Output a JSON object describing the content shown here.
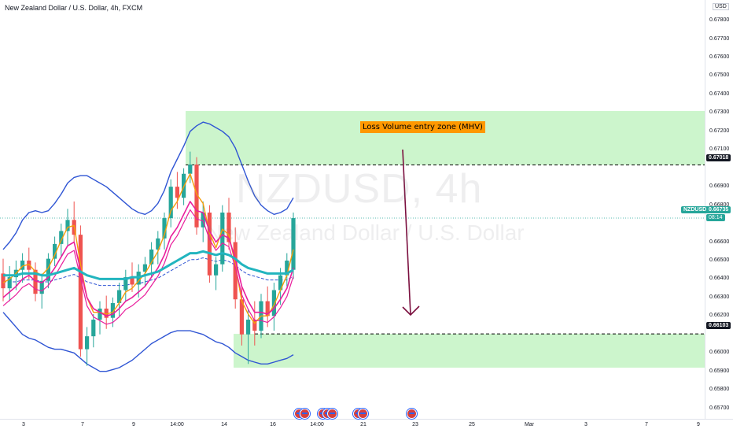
{
  "chart_data": {
    "type": "candlestick",
    "title": "New Zealand Dollar / U.S. Dollar, 4h, FXCM",
    "watermark_symbol": "NZDUSD, 4h",
    "watermark_name": "New Zealand Dollar / U.S. Dollar",
    "currency_label": "USD",
    "y_ticks": [
      "0.67800",
      "0.67700",
      "0.67600",
      "0.67500",
      "0.67400",
      "0.67300",
      "0.67200",
      "0.67100",
      "0.66900",
      "0.66800",
      "0.66600",
      "0.66500",
      "0.66400",
      "0.66300",
      "0.66200",
      "0.66000",
      "0.65900",
      "0.65800",
      "0.65700"
    ],
    "x_ticks": [
      "3",
      "7",
      "9",
      "14:00",
      "14",
      "16",
      "14:00",
      "21",
      "23",
      "25",
      "Mar",
      "3",
      "7",
      "9"
    ],
    "ylim": [
      0.6566,
      0.6786
    ],
    "zone_top": 0.6731,
    "upper_level": 0.67018,
    "lower_level": 0.66103,
    "zone_bottom": 0.6592,
    "price_tags": {
      "upper": "0.67018",
      "lower": "0.66103",
      "symbol": "NZDUSD",
      "last": "0.66735",
      "countdown": "08:14"
    },
    "annotation": "Loss Volume entry zone (MHV)",
    "colors": {
      "up": "#26a69a",
      "down": "#ef5350",
      "zone": "#ccf5cc",
      "ema_cyan": "#22b5bf",
      "ema_orange": "#f59e0b",
      "ema_magenta": "#e91e9c",
      "band_blue": "#2f55d4",
      "arrow": "#7b0f3f"
    },
    "candles": [
      {
        "o": 0.6643,
        "h": 0.6651,
        "l": 0.6628,
        "c": 0.6635
      },
      {
        "o": 0.6635,
        "h": 0.6647,
        "l": 0.6628,
        "c": 0.6641
      },
      {
        "o": 0.6641,
        "h": 0.665,
        "l": 0.6634,
        "c": 0.6645
      },
      {
        "o": 0.6645,
        "h": 0.6654,
        "l": 0.6638,
        "c": 0.665
      },
      {
        "o": 0.665,
        "h": 0.6657,
        "l": 0.664,
        "c": 0.6645
      },
      {
        "o": 0.6645,
        "h": 0.6649,
        "l": 0.6628,
        "c": 0.6632
      },
      {
        "o": 0.6632,
        "h": 0.6643,
        "l": 0.6624,
        "c": 0.6639
      },
      {
        "o": 0.6639,
        "h": 0.6654,
        "l": 0.6635,
        "c": 0.6651
      },
      {
        "o": 0.6651,
        "h": 0.6663,
        "l": 0.6647,
        "c": 0.6659
      },
      {
        "o": 0.6659,
        "h": 0.667,
        "l": 0.6652,
        "c": 0.6666
      },
      {
        "o": 0.6666,
        "h": 0.6678,
        "l": 0.6658,
        "c": 0.6672
      },
      {
        "o": 0.6672,
        "h": 0.6682,
        "l": 0.666,
        "c": 0.6664
      },
      {
        "o": 0.6664,
        "h": 0.6669,
        "l": 0.6598,
        "c": 0.6602
      },
      {
        "o": 0.6602,
        "h": 0.6614,
        "l": 0.6593,
        "c": 0.6609
      },
      {
        "o": 0.6609,
        "h": 0.6621,
        "l": 0.6603,
        "c": 0.6618
      },
      {
        "o": 0.6618,
        "h": 0.6628,
        "l": 0.661,
        "c": 0.6624
      },
      {
        "o": 0.6624,
        "h": 0.6631,
        "l": 0.6613,
        "c": 0.6619
      },
      {
        "o": 0.6619,
        "h": 0.663,
        "l": 0.6614,
        "c": 0.6627
      },
      {
        "o": 0.6627,
        "h": 0.6638,
        "l": 0.662,
        "c": 0.6634
      },
      {
        "o": 0.6634,
        "h": 0.6645,
        "l": 0.6628,
        "c": 0.6641
      },
      {
        "o": 0.6641,
        "h": 0.6649,
        "l": 0.6633,
        "c": 0.6637
      },
      {
        "o": 0.6637,
        "h": 0.6648,
        "l": 0.663,
        "c": 0.6644
      },
      {
        "o": 0.6644,
        "h": 0.6652,
        "l": 0.6636,
        "c": 0.6648
      },
      {
        "o": 0.6648,
        "h": 0.666,
        "l": 0.6641,
        "c": 0.6656
      },
      {
        "o": 0.6656,
        "h": 0.6666,
        "l": 0.6648,
        "c": 0.6662
      },
      {
        "o": 0.6662,
        "h": 0.6676,
        "l": 0.6656,
        "c": 0.6673
      },
      {
        "o": 0.6673,
        "h": 0.6694,
        "l": 0.6668,
        "c": 0.669
      },
      {
        "o": 0.669,
        "h": 0.6698,
        "l": 0.6678,
        "c": 0.6684
      },
      {
        "o": 0.6684,
        "h": 0.67,
        "l": 0.668,
        "c": 0.6697
      },
      {
        "o": 0.6697,
        "h": 0.6709,
        "l": 0.6692,
        "c": 0.6702
      },
      {
        "o": 0.6702,
        "h": 0.6706,
        "l": 0.6664,
        "c": 0.6668
      },
      {
        "o": 0.6668,
        "h": 0.6682,
        "l": 0.666,
        "c": 0.6676
      },
      {
        "o": 0.6676,
        "h": 0.668,
        "l": 0.6638,
        "c": 0.6642
      },
      {
        "o": 0.6642,
        "h": 0.6652,
        "l": 0.6634,
        "c": 0.6648
      },
      {
        "o": 0.6648,
        "h": 0.668,
        "l": 0.6644,
        "c": 0.6676
      },
      {
        "o": 0.6676,
        "h": 0.6684,
        "l": 0.6656,
        "c": 0.666
      },
      {
        "o": 0.666,
        "h": 0.6668,
        "l": 0.6624,
        "c": 0.6629
      },
      {
        "o": 0.6629,
        "h": 0.6636,
        "l": 0.6604,
        "c": 0.661
      },
      {
        "o": 0.661,
        "h": 0.6624,
        "l": 0.6594,
        "c": 0.6618
      },
      {
        "o": 0.6618,
        "h": 0.6628,
        "l": 0.6604,
        "c": 0.6612
      },
      {
        "o": 0.6612,
        "h": 0.6632,
        "l": 0.6608,
        "c": 0.6628
      },
      {
        "o": 0.6628,
        "h": 0.6636,
        "l": 0.6614,
        "c": 0.662
      },
      {
        "o": 0.662,
        "h": 0.6638,
        "l": 0.6612,
        "c": 0.6634
      },
      {
        "o": 0.6634,
        "h": 0.6646,
        "l": 0.6626,
        "c": 0.6642
      },
      {
        "o": 0.6642,
        "h": 0.6654,
        "l": 0.6636,
        "c": 0.665
      },
      {
        "o": 0.6645,
        "h": 0.6676,
        "l": 0.664,
        "c": 0.6673
      }
    ],
    "ema_cyan": [
      0.6642,
      0.6642,
      0.6642,
      0.6643,
      0.6643,
      0.6643,
      0.6642,
      0.6642,
      0.6643,
      0.6644,
      0.6645,
      0.6646,
      0.6644,
      0.6642,
      0.6641,
      0.664,
      0.664,
      0.664,
      0.664,
      0.664,
      0.6641,
      0.6641,
      0.6642,
      0.6643,
      0.6644,
      0.6646,
      0.6648,
      0.665,
      0.6652,
      0.6654,
      0.6654,
      0.6655,
      0.6654,
      0.6653,
      0.6654,
      0.6653,
      0.6651,
      0.6648,
      0.6646,
      0.6645,
      0.6644,
      0.6643,
      0.6643,
      0.6643,
      0.6643,
      0.6645
    ],
    "ema_orange": [
      0.6638,
      0.664,
      0.6643,
      0.6647,
      0.6648,
      0.6644,
      0.6642,
      0.6646,
      0.6653,
      0.6661,
      0.6668,
      0.6669,
      0.6648,
      0.663,
      0.6622,
      0.6622,
      0.6621,
      0.6622,
      0.6627,
      0.6633,
      0.6635,
      0.6639,
      0.6643,
      0.6649,
      0.6655,
      0.6664,
      0.6677,
      0.6682,
      0.669,
      0.6697,
      0.6686,
      0.6681,
      0.6665,
      0.6657,
      0.6667,
      0.6664,
      0.6648,
      0.6628,
      0.6621,
      0.6616,
      0.662,
      0.662,
      0.6626,
      0.6634,
      0.6642,
      0.6656
    ],
    "ema_magenta": [
      0.663,
      0.6633,
      0.6636,
      0.664,
      0.6642,
      0.6639,
      0.6638,
      0.6641,
      0.6646,
      0.6652,
      0.6658,
      0.666,
      0.6645,
      0.663,
      0.6624,
      0.6622,
      0.662,
      0.6621,
      0.6624,
      0.6628,
      0.663,
      0.6633,
      0.6636,
      0.6641,
      0.6646,
      0.6653,
      0.6663,
      0.6668,
      0.6675,
      0.6682,
      0.6677,
      0.6676,
      0.6666,
      0.666,
      0.6664,
      0.6662,
      0.6651,
      0.6636,
      0.6628,
      0.6622,
      0.6622,
      0.6621,
      0.6624,
      0.6629,
      0.6635,
      0.6646
    ],
    "band_upper": [
      0.6656,
      0.666,
      0.6665,
      0.6672,
      0.6676,
      0.6677,
      0.6676,
      0.6677,
      0.6681,
      0.6686,
      0.6692,
      0.6695,
      0.6696,
      0.6696,
      0.6694,
      0.6692,
      0.669,
      0.6687,
      0.6684,
      0.6681,
      0.6678,
      0.6676,
      0.6675,
      0.6677,
      0.6681,
      0.6688,
      0.6698,
      0.6705,
      0.6712,
      0.672,
      0.6723,
      0.6725,
      0.6724,
      0.6722,
      0.672,
      0.6717,
      0.6711,
      0.6702,
      0.6693,
      0.6685,
      0.668,
      0.6677,
      0.6675,
      0.6676,
      0.6678,
      0.6684
    ],
    "band_lower": [
      0.6622,
      0.6618,
      0.6614,
      0.661,
      0.6608,
      0.6607,
      0.6605,
      0.6603,
      0.6602,
      0.6602,
      0.6601,
      0.66,
      0.6597,
      0.6594,
      0.6592,
      0.659,
      0.659,
      0.6591,
      0.6592,
      0.6594,
      0.6596,
      0.6599,
      0.6602,
      0.6605,
      0.6607,
      0.6609,
      0.6611,
      0.6612,
      0.6612,
      0.6612,
      0.6611,
      0.661,
      0.6608,
      0.6606,
      0.6605,
      0.6603,
      0.66,
      0.6598,
      0.6596,
      0.6595,
      0.6594,
      0.6594,
      0.6595,
      0.6596,
      0.6597,
      0.6599
    ]
  }
}
